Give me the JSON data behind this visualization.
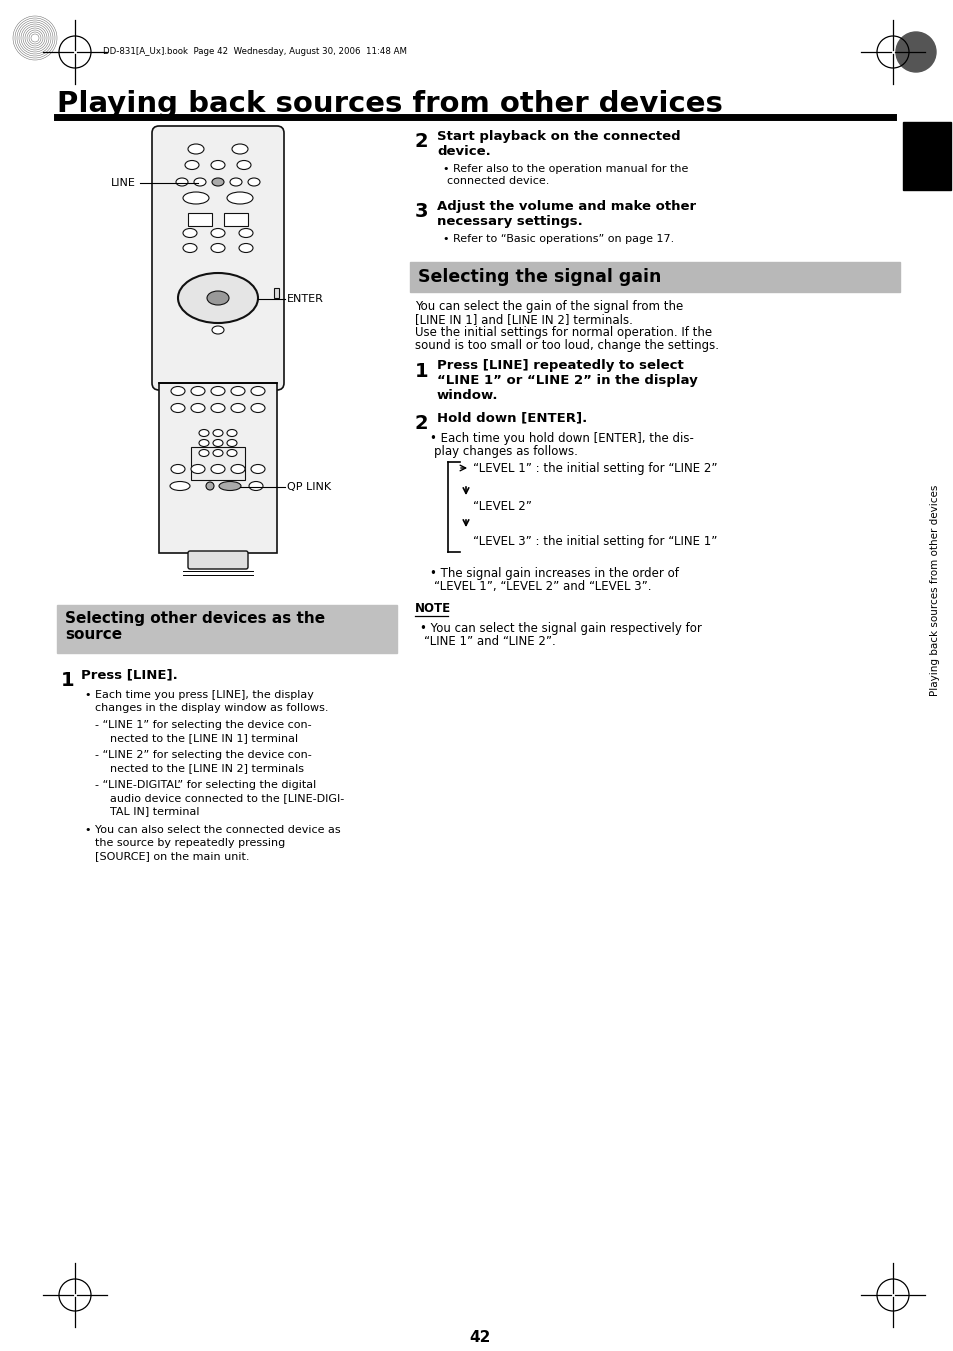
{
  "title": "Playing back sources from other devices",
  "bg_color": "#ffffff",
  "page_number": "42",
  "header_meta": "DD-831[A_Ux].book  Page 42  Wednesday, August 30, 2006  11:48 AM",
  "section1_title": "Selecting other devices as the\nsource",
  "section1_bg": "#c0c0c0",
  "section2_step2_bold": "Start playback on the connected\ndevice.",
  "section2_step2_bullet": "Refer also to the operation manual for the\nconnected device.",
  "section2_step3_bold": "Adjust the volume and make other\nnecessary settings.",
  "section2_step3_bullet": "Refer to “Basic operations” on page 17.",
  "section3_title": "Selecting the signal gain",
  "section3_bg": "#b8b8b8",
  "section3_intro1": "You can select the gain of the signal from the",
  "section3_intro2": "[LINE IN 1] and [LINE IN 2] terminals.",
  "section3_intro3": "Use the initial settings for normal operation. If the",
  "section3_intro4": "sound is too small or too loud, change the settings.",
  "section3_step1_bold": "Press [LINE] repeatedly to select\n“LINE 1” or “LINE 2” in the display\nwindow.",
  "section3_step2_bold": "Hold down [ENTER].",
  "section3_step2_bullet1a": "Each time you hold down [ENTER], the dis-",
  "section3_step2_bullet1b": "play changes as follows.",
  "level1": "“LEVEL 1” : the initial setting for “LINE 2”",
  "level2": "“LEVEL 2”",
  "level3": "“LEVEL 3” : the initial setting for “LINE 1”",
  "section3_step2_bullet2a": "The signal gain increases in the order of",
  "section3_step2_bullet2b": "“LEVEL 1”, “LEVEL 2” and “LEVEL 3”.",
  "note_title": "NOTE",
  "note_text": "You can select the signal gain respectively for\n“LINE 1” and “LINE 2”.",
  "sidebar_text": "Playing back sources from other devices",
  "tab_color": "#000000",
  "s1b1a": "Each time you press [LINE], the display",
  "s1b1b": "changes in the display window as follows.",
  "s1b2a": "- “LINE 1” for selecting the device con-",
  "s1b2b": "  nected to the [LINE IN 1] terminal",
  "s1b3a": "- “LINE 2” for selecting the device con-",
  "s1b3b": "  nected to the [LINE IN 2] terminals",
  "s1b4a": "- “LINE-DIGITAL” for selecting the digital",
  "s1b4b": "  audio device connected to the [LINE-DIGI-",
  "s1b4c": "  TAL IN] terminal",
  "s1b5a": "You can also select the connected device as",
  "s1b5b": "the source by repeatedly pressing",
  "s1b5c": "[SOURCE] on the main unit."
}
